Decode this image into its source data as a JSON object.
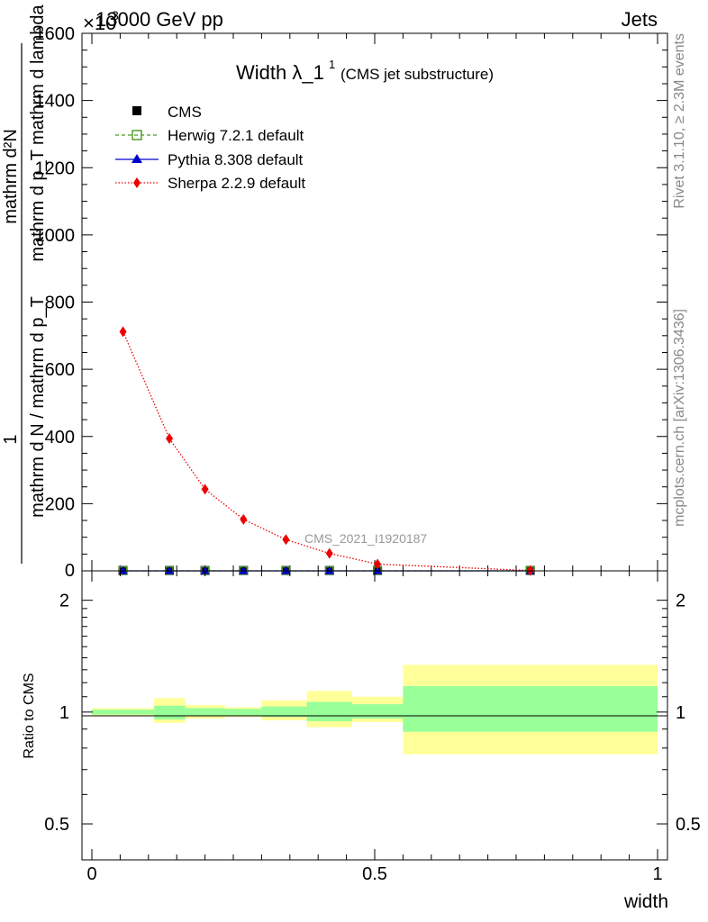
{
  "header": {
    "energy_label": "13000 GeV pp",
    "process_label": "Jets",
    "multiplier_label": "×10",
    "multiplier_exp": "3"
  },
  "side_labels": {
    "rivet": "Rivet 3.1.10, ≥ 2.3M events",
    "mcplots": "mcplots.cern.ch [arXiv:1306.3436]"
  },
  "main_plot": {
    "title": "Width λ_1",
    "title_sup": "1",
    "title_sub": "(CMS jet substructure)",
    "ylabel_top": "mathrm d²N",
    "ylabel_top_mid": "mathrm d p_T mathrm d lambda",
    "ylabel_num": "1",
    "ylabel_bottom": "mathrm d N / mathrm d p_T",
    "watermark": "CMS_2021_I1920187",
    "y_ticks": [
      "0",
      "200",
      "400",
      "600",
      "800",
      "1000",
      "1200",
      "1400",
      "1600"
    ]
  },
  "legend": {
    "entries": [
      "CMS",
      "Herwig 7.2.1 default",
      "Pythia 8.308 default",
      "Sherpa 2.2.9 default"
    ]
  },
  "ratio_plot": {
    "ylabel": "Ratio to CMS",
    "y_ticks": [
      "0.5",
      "1",
      "2"
    ],
    "x_ticks": [
      "0",
      "0.5",
      "1"
    ],
    "xlabel": "width"
  },
  "colors": {
    "cms": "#000000",
    "herwig": "#4a9a1e",
    "pythia": "#0000cc",
    "sherpa": "#ee0000",
    "band_inner": "#99ff99",
    "band_outer": "#ffff99"
  },
  "chart_data": {
    "type": "scatter",
    "title": "Width λ_1^1 (CMS jet substructure)",
    "xlabel": "width",
    "ylabel": "1/(dN/dp_T) d²N/(dp_T dλ)",
    "y_multiplier": 1000,
    "xlim": [
      0,
      1
    ],
    "ylim": [
      0,
      1600
    ],
    "x": [
      0.055,
      0.137,
      0.2,
      0.268,
      0.343,
      0.42,
      0.505,
      0.775
    ],
    "x_edges": [
      0,
      0.11,
      0.165,
      0.235,
      0.3,
      0.38,
      0.46,
      0.55,
      1.0
    ],
    "series": [
      {
        "name": "CMS",
        "marker": "square",
        "values": [
          1,
          1,
          1,
          1,
          1,
          1,
          1,
          1
        ]
      },
      {
        "name": "Herwig 7.2.1 default",
        "marker": "open-square",
        "line": "dashed",
        "values": [
          1,
          1,
          1,
          1,
          1,
          1,
          1,
          1
        ]
      },
      {
        "name": "Pythia 8.308 default",
        "marker": "triangle",
        "line": "solid",
        "values": [
          1,
          1,
          1,
          1,
          1,
          1,
          1,
          1
        ]
      },
      {
        "name": "Sherpa 2.2.9 default",
        "marker": "diamond",
        "line": "dotted",
        "values": [
          712,
          394,
          243,
          153,
          93,
          52,
          20,
          1
        ]
      }
    ],
    "ratio": {
      "ylabel": "Ratio to CMS",
      "ylim": [
        0.4,
        2.4
      ],
      "log": true,
      "inner_band": [
        {
          "lo": 0.985,
          "hi": 1.015
        },
        {
          "lo": 0.955,
          "hi": 1.04
        },
        {
          "lo": 0.975,
          "hi": 1.025
        },
        {
          "lo": 0.98,
          "hi": 1.02
        },
        {
          "lo": 0.97,
          "hi": 1.035
        },
        {
          "lo": 0.945,
          "hi": 1.065
        },
        {
          "lo": 0.96,
          "hi": 1.05
        },
        {
          "lo": 0.885,
          "hi": 1.175
        }
      ],
      "outer_band": [
        {
          "lo": 0.975,
          "hi": 1.025
        },
        {
          "lo": 0.935,
          "hi": 1.09
        },
        {
          "lo": 0.96,
          "hi": 1.045
        },
        {
          "lo": 0.97,
          "hi": 1.03
        },
        {
          "lo": 0.95,
          "hi": 1.075
        },
        {
          "lo": 0.91,
          "hi": 1.14
        },
        {
          "lo": 0.94,
          "hi": 1.1
        },
        {
          "lo": 0.77,
          "hi": 1.34
        }
      ]
    }
  }
}
